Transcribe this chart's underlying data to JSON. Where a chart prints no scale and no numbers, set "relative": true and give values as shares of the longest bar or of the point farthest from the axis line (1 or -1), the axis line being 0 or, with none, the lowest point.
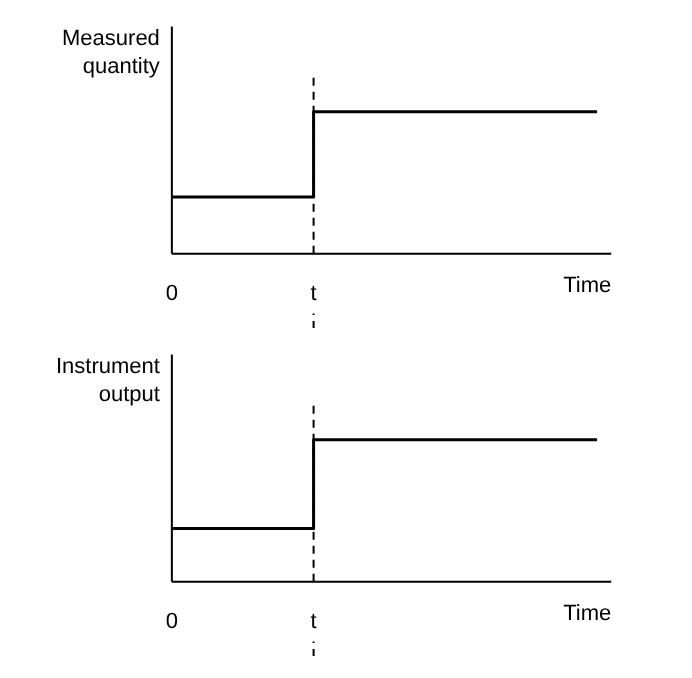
{
  "chart_data": [
    {
      "type": "step",
      "ylabel": "Measured\nquantity",
      "xlabel": "Time",
      "relative": true,
      "categories": [
        "0",
        "t",
        null,
        null
      ],
      "values": [
        0.4,
        1,
        1,
        1
      ],
      "color": "#000000",
      "ref_lines": [
        {
          "axis": "x",
          "value": "t",
          "line_style": "dashed",
          "color": "#000000"
        }
      ],
      "grid": false
    },
    {
      "type": "step",
      "ylabel": "Instrument\noutput",
      "xlabel": "Time",
      "relative": true,
      "categories": [
        "0",
        "t",
        null,
        null
      ],
      "values": [
        0.375,
        1,
        1,
        1
      ],
      "color": "#000000",
      "ref_lines": [
        {
          "axis": "x",
          "value": "t",
          "line_style": "dashed",
          "color": "#000000"
        }
      ],
      "grid": false
    }
  ]
}
